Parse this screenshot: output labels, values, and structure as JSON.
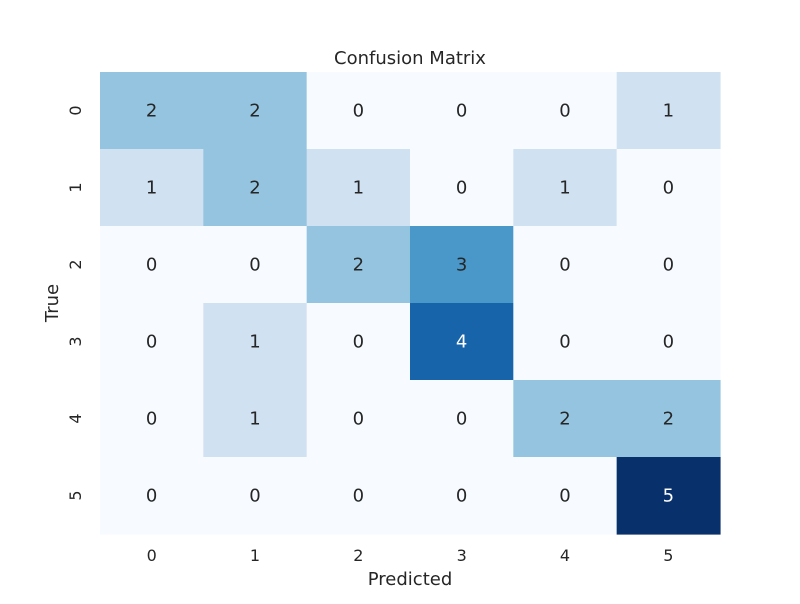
{
  "chart_data": {
    "type": "heatmap",
    "title": "Confusion Matrix",
    "xlabel": "Predicted",
    "ylabel": "True",
    "x_categories": [
      "0",
      "1",
      "2",
      "3",
      "4",
      "5"
    ],
    "y_categories": [
      "0",
      "1",
      "2",
      "3",
      "4",
      "5"
    ],
    "values": [
      [
        2,
        2,
        0,
        0,
        0,
        1
      ],
      [
        1,
        2,
        1,
        0,
        1,
        0
      ],
      [
        0,
        0,
        2,
        3,
        0,
        0
      ],
      [
        0,
        1,
        0,
        4,
        0,
        0
      ],
      [
        0,
        1,
        0,
        0,
        2,
        2
      ],
      [
        0,
        0,
        0,
        0,
        0,
        5
      ]
    ],
    "value_range": [
      0,
      5
    ],
    "colormap": "Blues",
    "colorbar": false,
    "grid": false
  }
}
